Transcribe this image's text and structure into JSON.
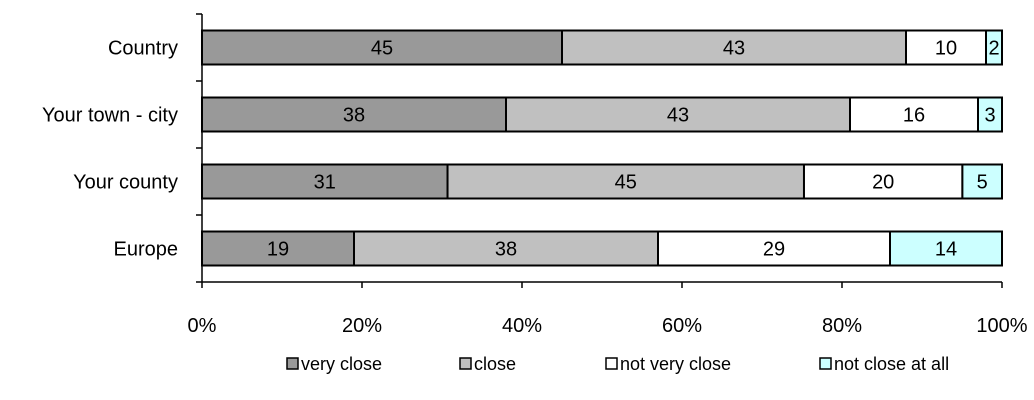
{
  "chart_data": {
    "type": "bar",
    "orientation": "horizontal",
    "stacked": "percent",
    "categories": [
      "Country",
      "Your town - city",
      "Your county",
      "Europe"
    ],
    "series": [
      {
        "name": "very close",
        "values": [
          45,
          38,
          31,
          19
        ],
        "color": "#999999"
      },
      {
        "name": "close",
        "values": [
          43,
          43,
          45,
          38
        ],
        "color": "#c0c0c0"
      },
      {
        "name": "not very close",
        "values": [
          10,
          16,
          20,
          29
        ],
        "color": "#ffffff"
      },
      {
        "name": "not close at all",
        "values": [
          2,
          3,
          5,
          14
        ],
        "color": "#ccffff"
      }
    ],
    "x_ticks": [
      "0%",
      "20%",
      "40%",
      "60%",
      "80%",
      "100%"
    ],
    "xlim": [
      0,
      100
    ],
    "grid": false,
    "legend_position": "bottom",
    "title": "",
    "xlabel": "",
    "ylabel": ""
  }
}
